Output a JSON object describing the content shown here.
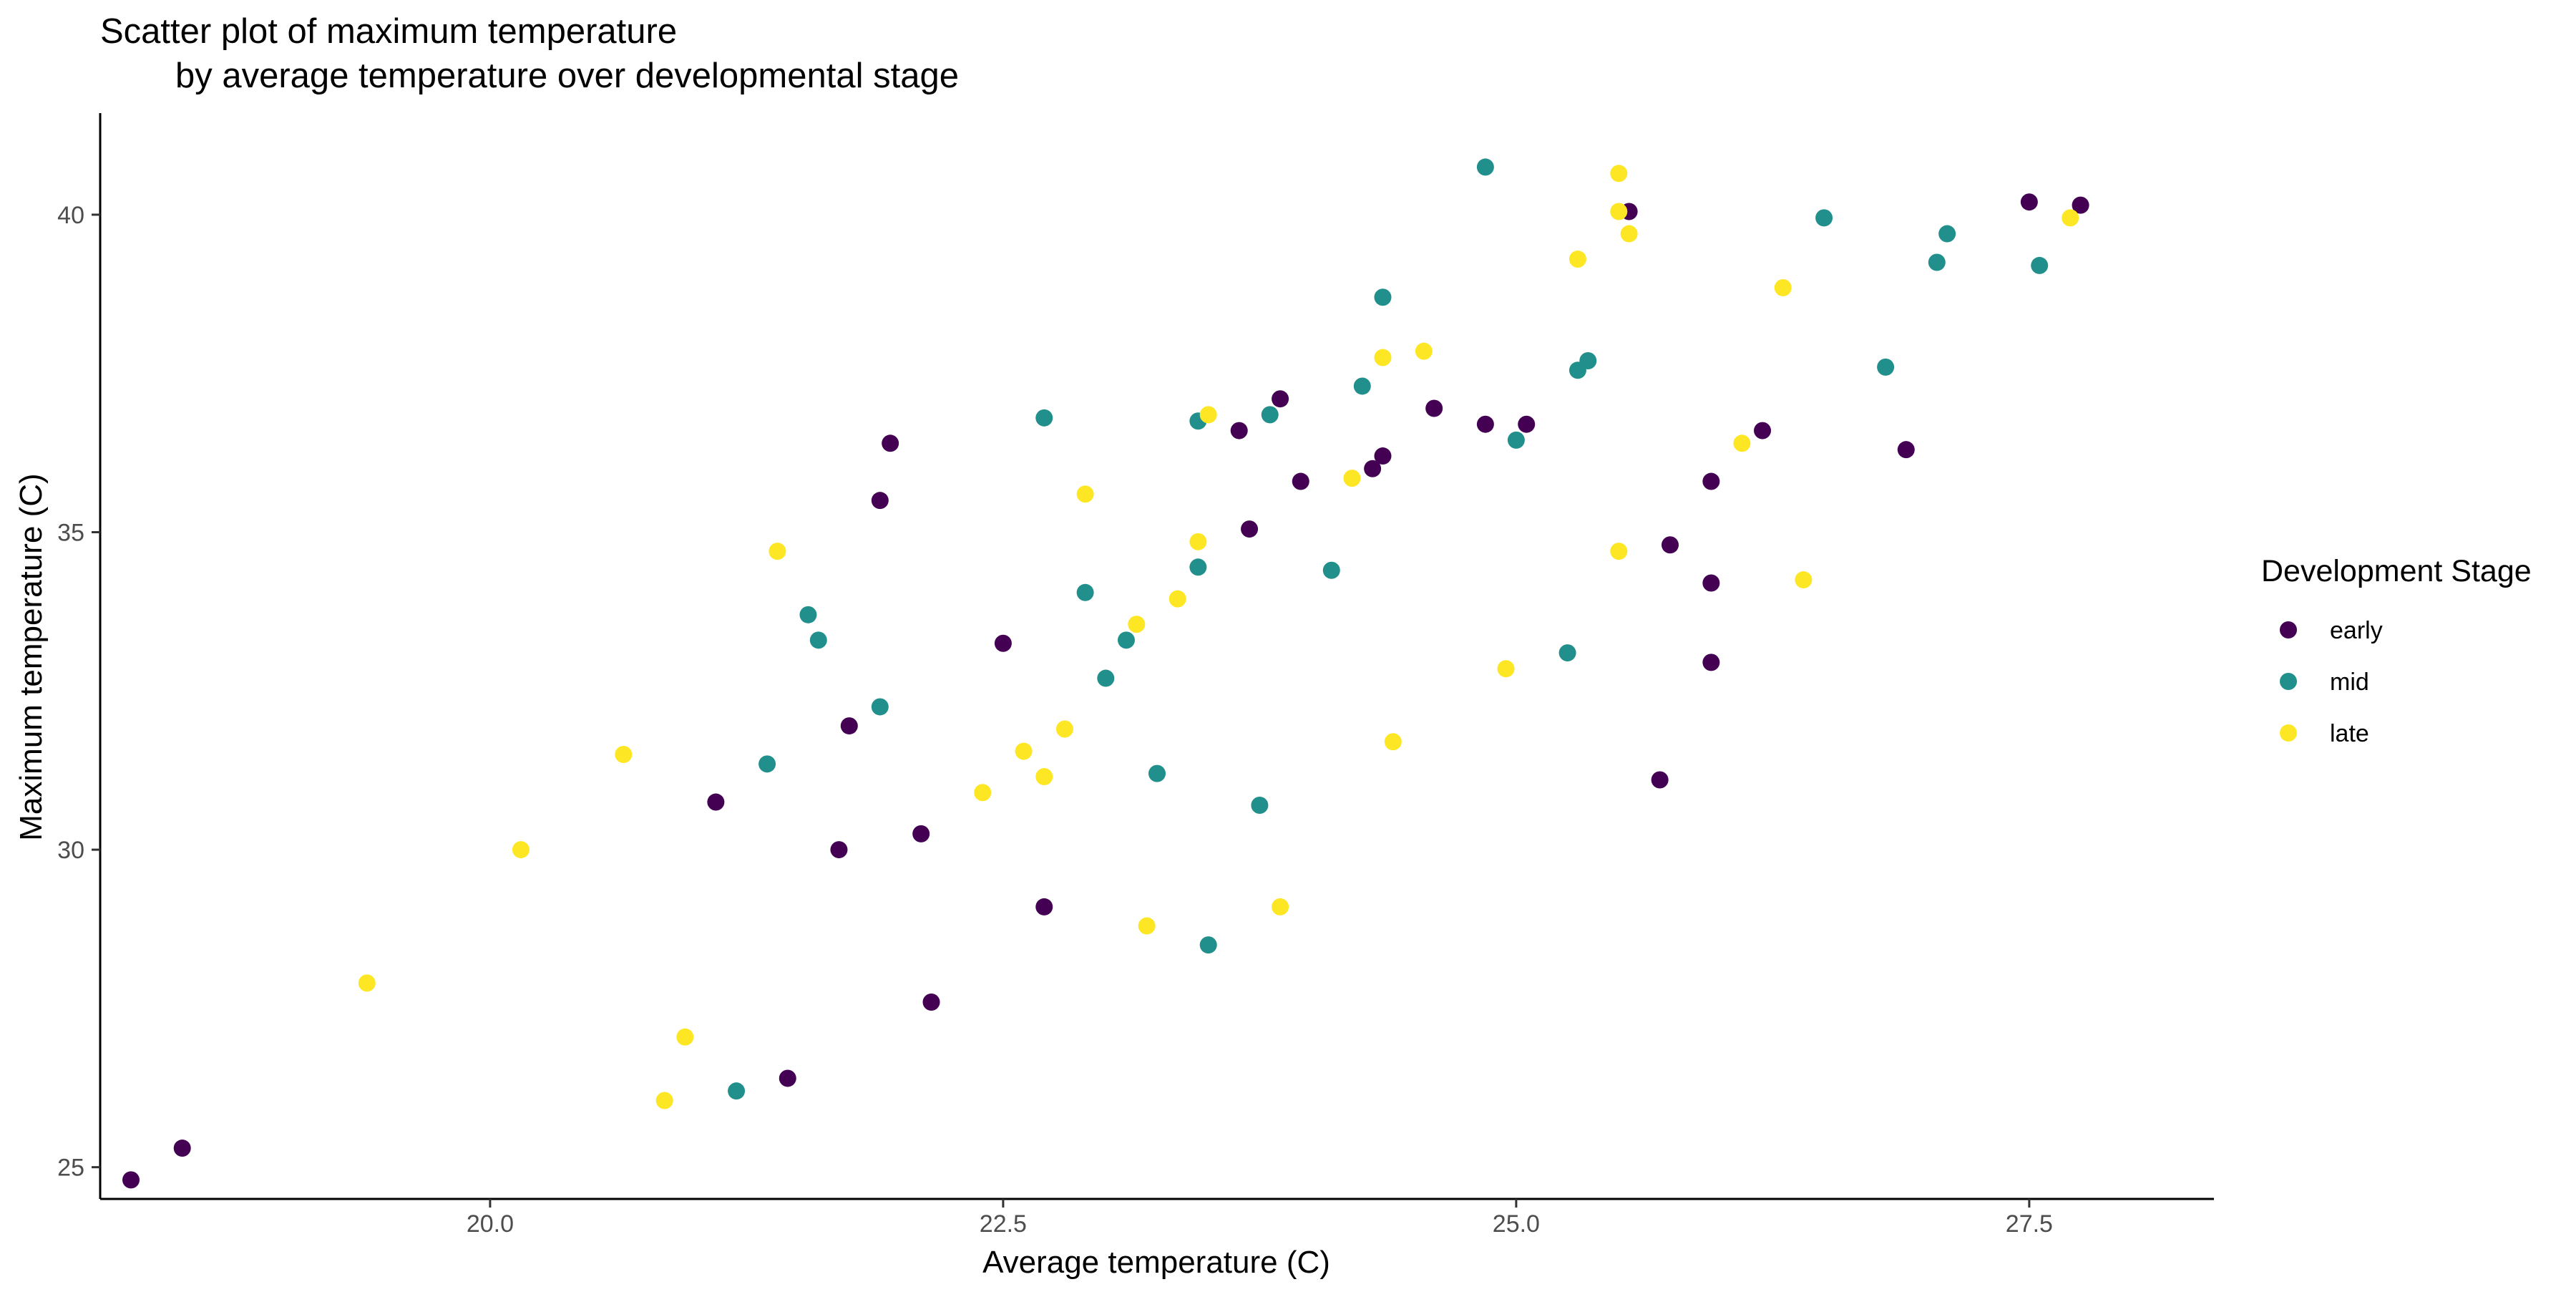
{
  "chart_data": {
    "type": "scatter",
    "title": [
      "Scatter plot of maximum temperature",
      "by average temperature over developmental stage"
    ],
    "xlabel": "Average temperature (C)",
    "ylabel": "Maximum temperature (C)",
    "xlim": [
      18.1,
      28.4
    ],
    "ylim": [
      24.5,
      41.6
    ],
    "xticks": [
      20.0,
      22.5,
      25.0,
      27.5
    ],
    "xtick_labels": [
      "20.0",
      "22.5",
      "25.0",
      "27.5"
    ],
    "yticks": [
      25,
      30,
      35,
      40
    ],
    "ytick_labels": [
      "25",
      "30",
      "35",
      "40"
    ],
    "grid": false,
    "legend": {
      "title": "Development Stage",
      "placement": "right"
    },
    "series": [
      {
        "name": "early",
        "color": "#440154",
        "points": [
          [
            18.25,
            24.8
          ],
          [
            18.5,
            25.3
          ],
          [
            21.1,
            30.75
          ],
          [
            21.45,
            26.4
          ],
          [
            21.7,
            30.0
          ],
          [
            21.75,
            31.95
          ],
          [
            21.9,
            35.5
          ],
          [
            21.95,
            36.4
          ],
          [
            22.1,
            30.25
          ],
          [
            22.15,
            27.6
          ],
          [
            22.5,
            33.25
          ],
          [
            22.7,
            29.1
          ],
          [
            23.65,
            36.6
          ],
          [
            23.7,
            35.05
          ],
          [
            23.85,
            37.1
          ],
          [
            23.95,
            35.8
          ],
          [
            24.3,
            36.0
          ],
          [
            24.35,
            36.2
          ],
          [
            24.6,
            36.95
          ],
          [
            24.85,
            36.7
          ],
          [
            25.05,
            36.7
          ],
          [
            25.55,
            40.05
          ],
          [
            25.7,
            31.1
          ],
          [
            25.75,
            34.8
          ],
          [
            25.95,
            34.2
          ],
          [
            25.95,
            35.8
          ],
          [
            25.95,
            32.95
          ],
          [
            26.2,
            36.6
          ],
          [
            26.9,
            36.3
          ],
          [
            27.5,
            40.2
          ],
          [
            27.75,
            40.15
          ]
        ]
      },
      {
        "name": "mid",
        "color": "#21908C",
        "points": [
          [
            21.2,
            26.2
          ],
          [
            21.35,
            31.35
          ],
          [
            21.55,
            33.7
          ],
          [
            21.6,
            33.3
          ],
          [
            21.9,
            32.25
          ],
          [
            22.7,
            36.8
          ],
          [
            22.9,
            34.05
          ],
          [
            23.0,
            32.7
          ],
          [
            23.1,
            33.3
          ],
          [
            23.25,
            31.2
          ],
          [
            23.45,
            36.75
          ],
          [
            23.45,
            34.45
          ],
          [
            23.5,
            28.5
          ],
          [
            23.75,
            30.7
          ],
          [
            23.8,
            36.85
          ],
          [
            24.1,
            34.4
          ],
          [
            24.25,
            37.3
          ],
          [
            24.35,
            38.7
          ],
          [
            24.85,
            40.75
          ],
          [
            25.0,
            36.45
          ],
          [
            25.25,
            33.1
          ],
          [
            25.3,
            37.55
          ],
          [
            25.35,
            37.7
          ],
          [
            26.5,
            39.95
          ],
          [
            26.8,
            37.6
          ],
          [
            27.05,
            39.25
          ],
          [
            27.1,
            39.7
          ],
          [
            27.55,
            39.2
          ]
        ]
      },
      {
        "name": "late",
        "color": "#FDE725",
        "points": [
          [
            19.4,
            27.9
          ],
          [
            20.15,
            30.0
          ],
          [
            20.65,
            31.5
          ],
          [
            20.85,
            26.05
          ],
          [
            20.95,
            27.05
          ],
          [
            21.4,
            34.7
          ],
          [
            22.4,
            30.9
          ],
          [
            22.6,
            31.55
          ],
          [
            22.7,
            31.15
          ],
          [
            22.8,
            31.9
          ],
          [
            22.9,
            35.6
          ],
          [
            23.15,
            33.55
          ],
          [
            23.2,
            28.8
          ],
          [
            23.35,
            33.95
          ],
          [
            23.45,
            34.85
          ],
          [
            23.5,
            36.85
          ],
          [
            23.85,
            29.1
          ],
          [
            24.2,
            35.85
          ],
          [
            24.35,
            37.75
          ],
          [
            24.4,
            31.7
          ],
          [
            24.55,
            37.85
          ],
          [
            24.95,
            32.85
          ],
          [
            25.3,
            39.3
          ],
          [
            25.5,
            40.65
          ],
          [
            25.5,
            40.05
          ],
          [
            25.55,
            39.7
          ],
          [
            25.5,
            34.7
          ],
          [
            26.1,
            36.4
          ],
          [
            26.3,
            38.85
          ],
          [
            26.4,
            34.25
          ],
          [
            27.7,
            39.95
          ]
        ]
      }
    ]
  }
}
